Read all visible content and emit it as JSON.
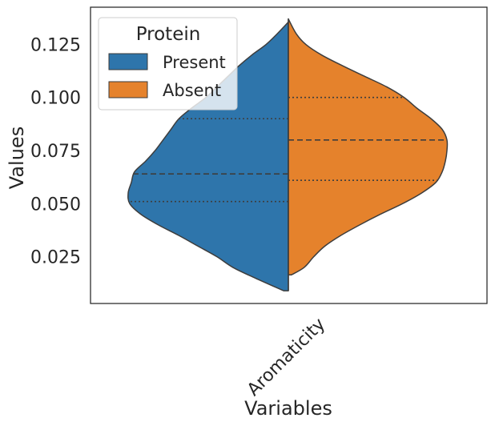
{
  "chart_data": {
    "type": "violin",
    "split": true,
    "xlabel": "Variables",
    "ylabel": "Values",
    "categories": [
      "Aromaticity"
    ],
    "ylim": [
      0.003,
      0.1425
    ],
    "yticks": [
      0.025,
      0.05,
      0.075,
      0.1,
      0.125
    ],
    "ytick_labels": [
      "0.025",
      "0.050",
      "0.075",
      "0.100",
      "0.125"
    ],
    "grid": false,
    "legend": {
      "title": "Protein",
      "placement": "top-left"
    },
    "series": [
      {
        "name": "Present",
        "color": "#2e75ab",
        "side": "left",
        "range": [
          0.009,
          0.1355
        ],
        "quartiles": {
          "q1": 0.051,
          "median": 0.064,
          "q3": 0.09
        },
        "density": [
          [
            0.009,
            0.03
          ],
          [
            0.015,
            0.21
          ],
          [
            0.02,
            0.35
          ],
          [
            0.025,
            0.45
          ],
          [
            0.03,
            0.57
          ],
          [
            0.035,
            0.69
          ],
          [
            0.04,
            0.82
          ],
          [
            0.045,
            0.93
          ],
          [
            0.05,
            1.0
          ],
          [
            0.055,
            1.01
          ],
          [
            0.06,
            0.99
          ],
          [
            0.065,
            0.97
          ],
          [
            0.07,
            0.9
          ],
          [
            0.075,
            0.84
          ],
          [
            0.08,
            0.79
          ],
          [
            0.085,
            0.74
          ],
          [
            0.09,
            0.69
          ],
          [
            0.095,
            0.61
          ],
          [
            0.1,
            0.52
          ],
          [
            0.105,
            0.45
          ],
          [
            0.11,
            0.38
          ],
          [
            0.115,
            0.31
          ],
          [
            0.12,
            0.23
          ],
          [
            0.125,
            0.14
          ],
          [
            0.13,
            0.07
          ],
          [
            0.1355,
            0.0
          ]
        ]
      },
      {
        "name": "Absent",
        "color": "#e5822c",
        "side": "right",
        "range": [
          0.0165,
          0.137
        ],
        "quartiles": {
          "q1": 0.061,
          "median": 0.08,
          "q3": 0.1
        },
        "density": [
          [
            0.0165,
            0.02
          ],
          [
            0.02,
            0.1
          ],
          [
            0.025,
            0.16
          ],
          [
            0.03,
            0.23
          ],
          [
            0.035,
            0.33
          ],
          [
            0.04,
            0.45
          ],
          [
            0.045,
            0.58
          ],
          [
            0.05,
            0.72
          ],
          [
            0.055,
            0.84
          ],
          [
            0.06,
            0.93
          ],
          [
            0.065,
            0.97
          ],
          [
            0.07,
            0.99
          ],
          [
            0.075,
            1.0
          ],
          [
            0.08,
            1.0
          ],
          [
            0.085,
            0.97
          ],
          [
            0.09,
            0.9
          ],
          [
            0.095,
            0.81
          ],
          [
            0.1,
            0.73
          ],
          [
            0.105,
            0.62
          ],
          [
            0.11,
            0.48
          ],
          [
            0.115,
            0.34
          ],
          [
            0.12,
            0.21
          ],
          [
            0.125,
            0.11
          ],
          [
            0.13,
            0.05
          ],
          [
            0.137,
            0.0
          ]
        ]
      }
    ]
  }
}
